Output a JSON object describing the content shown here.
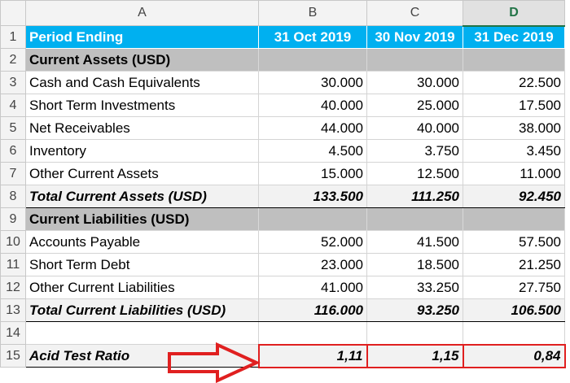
{
  "columns": [
    "A",
    "B",
    "C",
    "D"
  ],
  "selected_column": "D",
  "rows": [
    {
      "num": "1",
      "type": "hdr",
      "cells": [
        "Period Ending",
        "31 Oct 2019",
        "30 Nov 2019",
        "31 Dec  2019"
      ]
    },
    {
      "num": "2",
      "type": "section",
      "cells": [
        "Current Assets (USD)",
        "",
        "",
        ""
      ]
    },
    {
      "num": "3",
      "type": "data",
      "cells": [
        "Cash and Cash Equivalents",
        "30.000",
        "30.000",
        "22.500"
      ]
    },
    {
      "num": "4",
      "type": "data",
      "cells": [
        "Short Term Investments",
        "40.000",
        "25.000",
        "17.500"
      ]
    },
    {
      "num": "5",
      "type": "data",
      "cells": [
        "Net Receivables",
        "44.000",
        "40.000",
        "38.000"
      ]
    },
    {
      "num": "6",
      "type": "data",
      "cells": [
        "Inventory",
        "4.500",
        "3.750",
        "3.450"
      ]
    },
    {
      "num": "7",
      "type": "data",
      "cells": [
        "Other Current Assets",
        "15.000",
        "12.500",
        "11.000"
      ]
    },
    {
      "num": "8",
      "type": "total",
      "cells": [
        "Total Current Assets (USD)",
        "133.500",
        "111.250",
        "92.450"
      ]
    },
    {
      "num": "9",
      "type": "section",
      "cells": [
        "Current Liabilities (USD)",
        "",
        "",
        ""
      ]
    },
    {
      "num": "10",
      "type": "data",
      "cells": [
        "Accounts Payable",
        "52.000",
        "41.500",
        "57.500"
      ]
    },
    {
      "num": "11",
      "type": "data",
      "cells": [
        "Short Term Debt",
        "23.000",
        "18.500",
        "21.250"
      ]
    },
    {
      "num": "12",
      "type": "data",
      "cells": [
        "Other Current Liabilities",
        "41.000",
        "33.250",
        "27.750"
      ]
    },
    {
      "num": "13",
      "type": "total",
      "cells": [
        "Total Current Liabilities (USD)",
        "116.000",
        "93.250",
        "106.500"
      ]
    },
    {
      "num": "14",
      "type": "empty",
      "cells": [
        "",
        "",
        "",
        ""
      ]
    },
    {
      "num": "15",
      "type": "ratio",
      "cells": [
        "Acid Test Ratio",
        "1,11",
        "1,15",
        "0,84"
      ]
    }
  ],
  "colors": {
    "header_fill": "#00b0f0",
    "section_fill": "#bfbfbf",
    "total_fill": "#f2f2f2",
    "highlight": "#e02020",
    "selected_column_text": "#217346"
  },
  "annotation": {
    "arrow": "red-outline-arrow",
    "target": "row 15 values"
  }
}
